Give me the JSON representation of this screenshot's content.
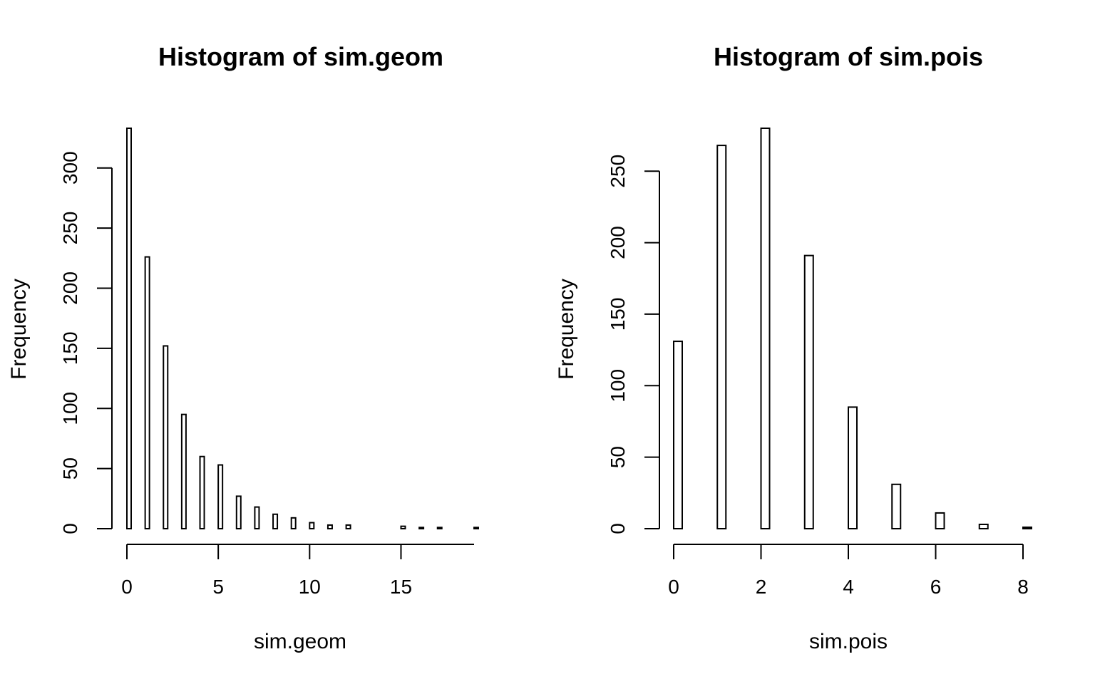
{
  "chart_data": [
    {
      "type": "bar",
      "title": "Histogram of sim.geom",
      "xlabel": "sim.geom",
      "ylabel": "Frequency",
      "x": [
        0,
        1,
        2,
        3,
        4,
        5,
        6,
        7,
        8,
        9,
        10,
        11,
        12,
        13,
        14,
        15,
        16,
        17,
        18,
        19
      ],
      "values": [
        333,
        226,
        152,
        95,
        60,
        53,
        27,
        18,
        12,
        9,
        5,
        3,
        3,
        0,
        0,
        2,
        1,
        1,
        0,
        1
      ],
      "xlim": [
        0,
        19
      ],
      "ylim": [
        0,
        333
      ],
      "xticks": [
        0,
        5,
        10,
        15
      ],
      "xtick_labels": [
        "0",
        "5",
        "10",
        "15"
      ],
      "yticks": [
        0,
        50,
        100,
        150,
        200,
        250,
        300
      ],
      "ytick_labels": [
        "0",
        "50",
        "100",
        "150",
        "200",
        "250",
        "300"
      ],
      "grid": false
    },
    {
      "type": "bar",
      "title": "Histogram of sim.pois",
      "xlabel": "sim.pois",
      "ylabel": "Frequency",
      "x": [
        0,
        1,
        2,
        3,
        4,
        5,
        6,
        7,
        8
      ],
      "values": [
        131,
        268,
        280,
        191,
        85,
        31,
        11,
        3,
        1
      ],
      "xlim": [
        0,
        8
      ],
      "ylim": [
        0,
        280
      ],
      "xticks": [
        0,
        2,
        4,
        6,
        8
      ],
      "xtick_labels": [
        "0",
        "2",
        "4",
        "6",
        "8"
      ],
      "yticks": [
        0,
        50,
        100,
        150,
        200,
        250
      ],
      "ytick_labels": [
        "0",
        "50",
        "100",
        "150",
        "200",
        "250"
      ],
      "grid": false
    }
  ]
}
